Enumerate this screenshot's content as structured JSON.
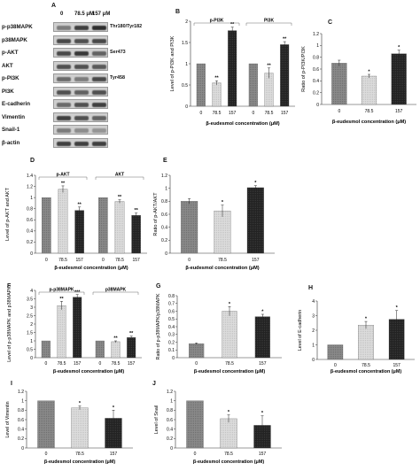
{
  "blot": {
    "panel_letter": "A",
    "lanes": [
      "0",
      "78.5 μM",
      "157 μM"
    ],
    "rows": [
      {
        "label": "p-p38MAPK",
        "site": "Thr180/Tyr182",
        "intensity": [
          0.45,
          0.8,
          0.9
        ]
      },
      {
        "label": "p38MAPK",
        "site": "",
        "intensity": [
          0.75,
          0.7,
          0.75
        ]
      },
      {
        "label": "p-AKT",
        "site": "Ser473",
        "intensity": [
          0.75,
          0.85,
          0.6
        ]
      },
      {
        "label": "AKT",
        "site": "",
        "intensity": [
          0.7,
          0.7,
          0.65
        ]
      },
      {
        "label": "p-PI3K",
        "site": "Tyr458",
        "intensity": [
          0.55,
          0.45,
          0.75
        ]
      },
      {
        "label": "PI3K",
        "site": "",
        "intensity": [
          0.7,
          0.6,
          0.7
        ]
      },
      {
        "label": "E-cadherin",
        "site": "",
        "intensity": [
          0.55,
          0.7,
          0.8
        ]
      },
      {
        "label": "Vimentin",
        "site": "",
        "intensity": [
          0.8,
          0.7,
          0.6
        ]
      },
      {
        "label": "Snail-1",
        "site": "",
        "intensity": [
          0.45,
          0.35,
          0.3
        ]
      },
      {
        "label": "β-actin",
        "site": "",
        "intensity": [
          0.8,
          0.8,
          0.8
        ]
      }
    ]
  },
  "chart_data": [
    {
      "id": "B",
      "type": "bar",
      "ylabel": "Level of p-PI3K and PI3K",
      "xlabel": "β-eudesmol concentration (μM)",
      "ylim": [
        0,
        2
      ],
      "yticks": [
        0,
        0.5,
        1,
        1.5,
        2
      ],
      "groups": [
        {
          "name": "p-PI3K",
          "categories": [
            "0",
            "78.5",
            "157"
          ],
          "values": [
            1.0,
            0.55,
            1.78
          ],
          "errors": [
            0,
            0.05,
            0.08
          ],
          "sig": [
            "",
            "**",
            "**"
          ]
        },
        {
          "name": "PI3K",
          "categories": [
            "0",
            "78.5",
            "157"
          ],
          "values": [
            1.0,
            0.78,
            1.45
          ],
          "errors": [
            0,
            0.12,
            0.07
          ],
          "sig": [
            "",
            "**",
            "**"
          ]
        }
      ]
    },
    {
      "id": "C",
      "type": "bar",
      "ylabel": "Ratio of p-PI3K/PI3K",
      "xlabel": "β-eudesmol concentration (μM)",
      "ylim": [
        0,
        1.2
      ],
      "yticks": [
        0,
        0.2,
        0.4,
        0.6,
        0.8,
        1,
        1.2
      ],
      "categories": [
        "0",
        "78.5",
        "157"
      ],
      "values": [
        0.7,
        0.48,
        0.86
      ],
      "errors": [
        0.05,
        0.03,
        0.06
      ],
      "sig": [
        "",
        "*",
        "*"
      ]
    },
    {
      "id": "D",
      "type": "bar",
      "ylabel": "Level of p-AKT and AKT",
      "xlabel": "β-eudesmol concentration (μM)",
      "ylim": [
        0,
        1.4
      ],
      "yticks": [
        0,
        0.2,
        0.4,
        0.6,
        0.8,
        1,
        1.2,
        1.4
      ],
      "groups": [
        {
          "name": "p-AKT",
          "categories": [
            "0",
            "78.5",
            "157"
          ],
          "values": [
            1.0,
            1.15,
            0.77
          ],
          "errors": [
            0,
            0.06,
            0.06
          ],
          "sig": [
            "",
            "**",
            "**"
          ]
        },
        {
          "name": "AKT",
          "categories": [
            "0",
            "78.5",
            "157"
          ],
          "values": [
            1.0,
            0.93,
            0.68
          ],
          "errors": [
            0,
            0.03,
            0.04
          ],
          "sig": [
            "",
            "**",
            "**"
          ]
        }
      ]
    },
    {
      "id": "E",
      "type": "bar",
      "ylabel": "Ratio of p-AKT/AKT",
      "xlabel": "β-eudesmol concentration (μM)",
      "ylim": [
        0,
        1.2
      ],
      "yticks": [
        0,
        0.2,
        0.4,
        0.6,
        0.8,
        1,
        1.2
      ],
      "categories": [
        "0",
        "78.5",
        "157"
      ],
      "values": [
        0.8,
        0.65,
        1.01
      ],
      "errors": [
        0.04,
        0.09,
        0.03
      ],
      "sig": [
        "",
        "*",
        "*"
      ]
    },
    {
      "id": "F",
      "type": "bar",
      "ylabel": "Level of p-p38MAPK and p38MAPK",
      "xlabel": "β-eudesmol concentration (μM)",
      "ylim": [
        0,
        4
      ],
      "yticks": [
        0,
        0.5,
        1,
        1.5,
        2,
        2.5,
        3,
        3.5,
        4
      ],
      "groups": [
        {
          "name": "p-p38MAPK",
          "categories": [
            "0",
            "78.5",
            "157"
          ],
          "values": [
            1.0,
            3.1,
            3.6
          ],
          "errors": [
            0,
            0.25,
            0.15
          ],
          "sig": [
            "",
            "**",
            "***"
          ]
        },
        {
          "name": "p38MAPK",
          "categories": [
            "0",
            "78.5",
            "157"
          ],
          "values": [
            1.0,
            0.95,
            1.2
          ],
          "errors": [
            0,
            0.05,
            0.08
          ],
          "sig": [
            "",
            "**",
            "**"
          ]
        }
      ]
    },
    {
      "id": "G",
      "type": "bar",
      "ylabel": "Ratio of p-p38MAPK/p38MAPK",
      "xlabel": "β-eudesmol concentration (μM)",
      "ylim": [
        0,
        0.8
      ],
      "yticks": [
        0,
        0.1,
        0.2,
        0.3,
        0.4,
        0.5,
        0.6,
        0.7,
        0.8
      ],
      "categories": [
        "0",
        "78.5",
        "157"
      ],
      "values": [
        0.18,
        0.6,
        0.53
      ],
      "errors": [
        0.01,
        0.06,
        0.03
      ],
      "sig": [
        "",
        "*",
        "*"
      ]
    },
    {
      "id": "H",
      "type": "bar",
      "ylabel": "Level of E-cadherin",
      "xlabel": "β-eudesmol concentration (μM)",
      "ylim": [
        0,
        4
      ],
      "yticks": [
        0,
        1,
        2,
        3,
        4
      ],
      "categories": [
        "0",
        "78.5",
        "157"
      ],
      "values": [
        1.0,
        2.35,
        2.75
      ],
      "errors": [
        0,
        0.25,
        0.6
      ],
      "sig": [
        "",
        "*",
        "*"
      ]
    },
    {
      "id": "I",
      "type": "bar",
      "ylabel": "Level of Vimentin",
      "xlabel": "β-eudesmol concentration (μM)",
      "ylim": [
        0,
        1.2
      ],
      "yticks": [
        0,
        0.2,
        0.4,
        0.6,
        0.8,
        1,
        1.2
      ],
      "categories": [
        "0",
        "78.5",
        "157"
      ],
      "values": [
        1.0,
        0.85,
        0.63
      ],
      "errors": [
        0,
        0.04,
        0.17
      ],
      "sig": [
        "",
        "*",
        "*"
      ]
    },
    {
      "id": "J",
      "type": "bar",
      "ylabel": "Level of Snail",
      "xlabel": "β-eudesmol concentration (μM)",
      "ylim": [
        0,
        1.2
      ],
      "yticks": [
        0,
        0.2,
        0.4,
        0.6,
        0.8,
        1,
        1.2
      ],
      "categories": [
        "0",
        "78.5",
        "157"
      ],
      "values": [
        1.0,
        0.62,
        0.48
      ],
      "errors": [
        0,
        0.08,
        0.2
      ],
      "sig": [
        "",
        "*",
        "*"
      ]
    }
  ],
  "colors": {
    "bar_control": "#8a8a8a",
    "bar_mid": "#d9d9d9",
    "bar_high": "#1e1e1e",
    "axis": "#333333"
  }
}
